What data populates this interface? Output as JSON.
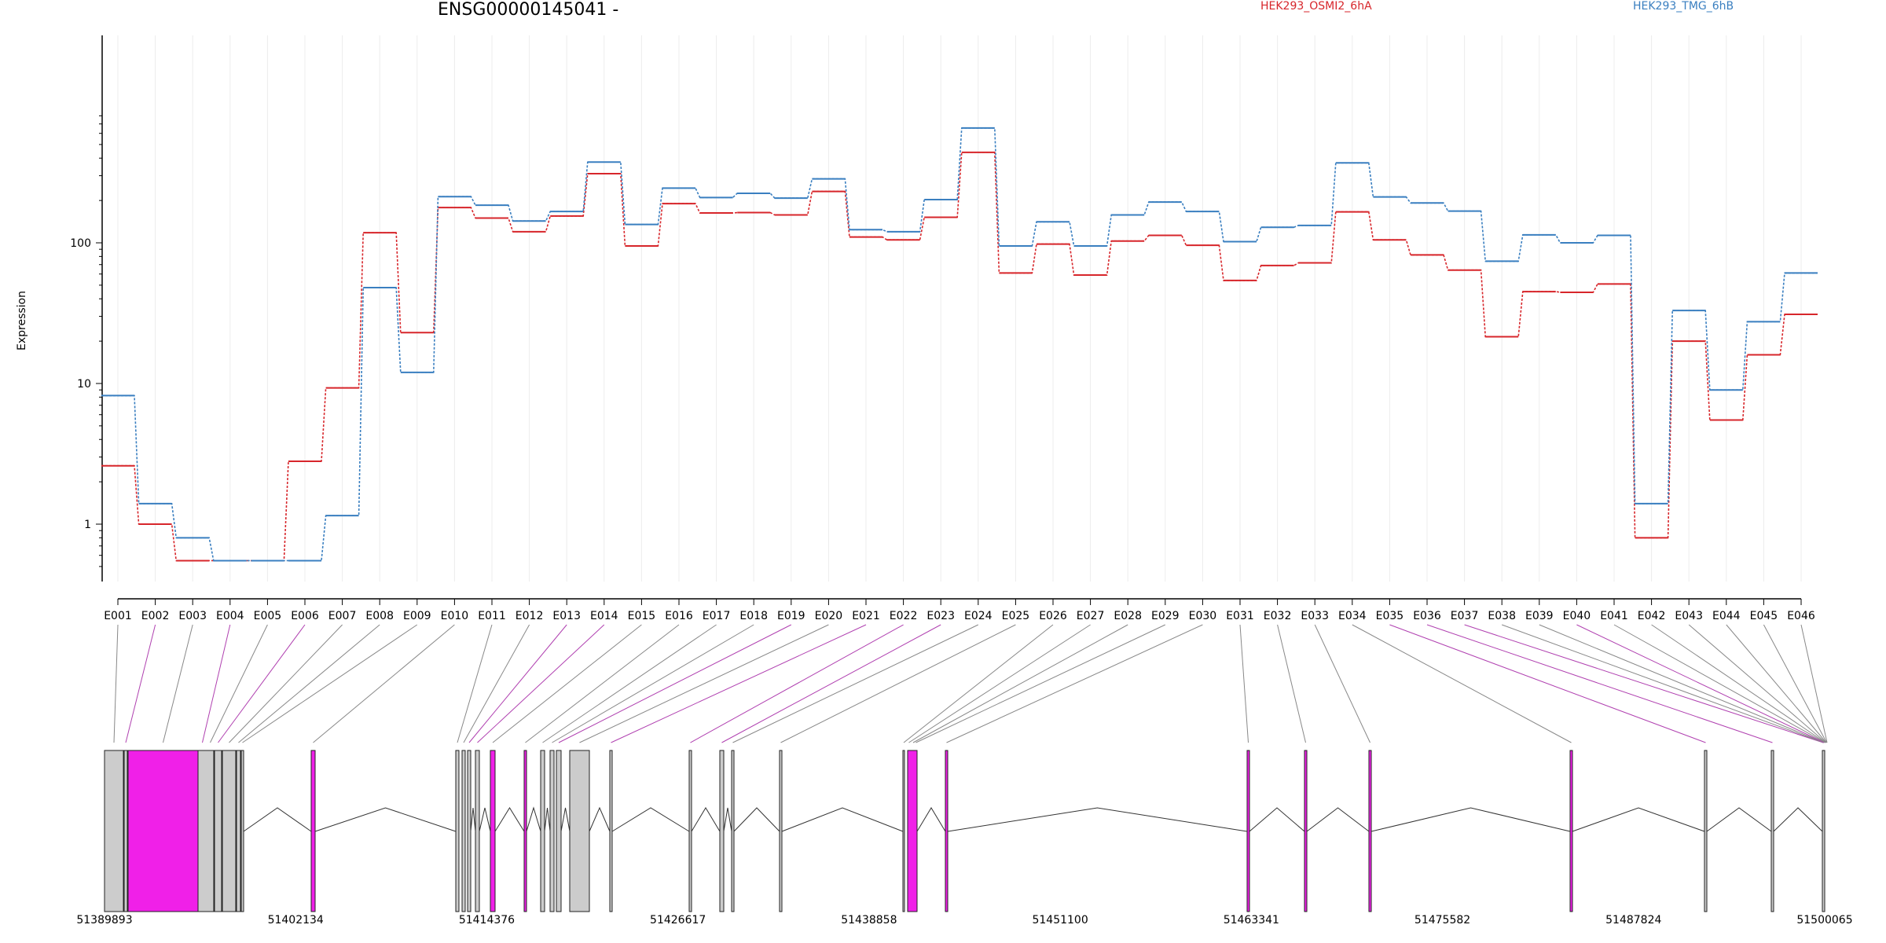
{
  "chart_data": {
    "type": "line",
    "title": "ENSG00000145041 -",
    "ylabel": "Expression",
    "y_scale": "log",
    "y_ticks": [
      "1",
      "10",
      "100"
    ],
    "y_tick_values": [
      1,
      10,
      100
    ],
    "ylim": [
      0.5,
      850
    ],
    "categories": [
      "E001",
      "E002",
      "E003",
      "E004",
      "E005",
      "E006",
      "E007",
      "E008",
      "E009",
      "E010",
      "E011",
      "E012",
      "E013",
      "E014",
      "E015",
      "E016",
      "E017",
      "E018",
      "E019",
      "E020",
      "E021",
      "E022",
      "E023",
      "E024",
      "E025",
      "E026",
      "E027",
      "E028",
      "E029",
      "E030",
      "E031",
      "E032",
      "E033",
      "E034",
      "E035",
      "E036",
      "E037",
      "E038",
      "E039",
      "E040",
      "E041",
      "E042",
      "E043",
      "E044",
      "E045",
      "E046"
    ],
    "series": [
      {
        "name": "HEK293_OSMI2_6hA",
        "color": "#d7262b",
        "values": [
          2.6,
          1.0,
          0.55,
          0.55,
          0.55,
          2.8,
          9.3,
          118,
          23,
          178,
          150,
          120,
          155,
          310,
          95,
          190,
          163,
          164,
          158,
          232,
          110,
          105,
          152,
          440,
          61,
          98,
          59,
          103,
          113,
          96,
          54,
          69,
          72,
          166,
          105,
          82,
          64,
          21.5,
          45,
          44.5,
          51,
          0.8,
          20,
          5.5,
          16,
          31
        ]
      },
      {
        "name": "HEK293_TMG_6hB",
        "color": "#3a7fc0",
        "values": [
          8.2,
          1.4,
          0.8,
          0.55,
          0.55,
          0.55,
          1.15,
          48,
          12,
          213,
          185,
          143,
          167,
          375,
          135,
          245,
          210,
          225,
          208,
          285,
          124,
          120,
          203,
          655,
          95,
          141,
          95,
          158,
          195,
          167,
          102,
          129,
          133,
          370,
          212,
          192,
          168,
          74,
          114,
          100,
          113,
          1.4,
          33,
          9,
          27.5,
          61
        ]
      }
    ],
    "genome": {
      "tick_labels": [
        "51389893",
        "51402134",
        "51414376",
        "51426617",
        "51438858",
        "51451100",
        "51463341",
        "51475582",
        "51487824",
        "51500065"
      ],
      "tick_values": [
        51389893,
        51402134,
        51414376,
        51426617,
        51438858,
        51451100,
        51463341,
        51475582,
        51487824,
        51500065
      ],
      "exon_colors": {
        "default": "#cccccc",
        "highlight": "#f020e8"
      },
      "highlighted_exons": [
        "E002",
        "E004",
        "E006",
        "E013",
        "E014",
        "E019",
        "E021",
        "E022",
        "E023",
        "E035",
        "E036",
        "E037",
        "E040"
      ]
    }
  }
}
